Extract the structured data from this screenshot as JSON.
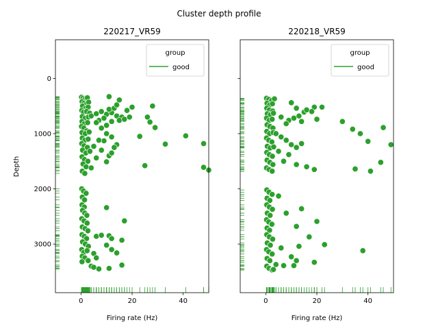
{
  "figure": {
    "suptitle": "Cluster depth profile"
  },
  "chart_data": [
    {
      "type": "scatter",
      "title": "220217_VR59",
      "xlabel": "Firing rate (Hz)",
      "ylabel": "Depth",
      "xlim": [
        -10,
        50
      ],
      "ylim": [
        3880,
        -700
      ],
      "y_inverted": true,
      "xticks": [
        0,
        20,
        40
      ],
      "yticks": [
        0,
        1000,
        2000,
        3000
      ],
      "grid": false,
      "legend": {
        "title": "group",
        "entries": [
          "good"
        ],
        "placement": "upper-right"
      },
      "series": [
        {
          "name": "good",
          "color": "#2ca02c",
          "points": [
            [
              0.2,
              340
            ],
            [
              0.8,
              360
            ],
            [
              1.5,
              380
            ],
            [
              2.5,
              350
            ],
            [
              0.4,
              420
            ],
            [
              1.2,
              450
            ],
            [
              2,
              470
            ],
            [
              3,
              430
            ],
            [
              0.6,
              500
            ],
            [
              1.8,
              540
            ],
            [
              2.8,
              520
            ],
            [
              0.3,
              580
            ],
            [
              1,
              610
            ],
            [
              2.2,
              600
            ],
            [
              3.4,
              630
            ],
            [
              0.5,
              690
            ],
            [
              1.6,
              720
            ],
            [
              2.9,
              700
            ],
            [
              4,
              680
            ],
            [
              0.4,
              780
            ],
            [
              1.3,
              820
            ],
            [
              2.6,
              800
            ],
            [
              0.2,
              870
            ],
            [
              1.1,
              900
            ],
            [
              2.3,
              950
            ],
            [
              0.4,
              980
            ],
            [
              1.7,
              1000
            ],
            [
              3.2,
              970
            ],
            [
              0.5,
              1080
            ],
            [
              1.5,
              1120
            ],
            [
              2.8,
              1100
            ],
            [
              0.3,
              1180
            ],
            [
              1.2,
              1220
            ],
            [
              2.5,
              1250
            ],
            [
              0.6,
              1300
            ],
            [
              1.9,
              1350
            ],
            [
              3.5,
              1320
            ],
            [
              0.4,
              1420
            ],
            [
              1.4,
              1470
            ],
            [
              2.7,
              1500
            ],
            [
              0.8,
              1550
            ],
            [
              2,
              1600
            ],
            [
              0.5,
              1680
            ],
            [
              1.5,
              1720
            ],
            [
              6,
              640
            ],
            [
              8,
              600
            ],
            [
              10,
              650
            ],
            [
              12,
              620
            ],
            [
              14,
              680
            ],
            [
              16,
              700
            ],
            [
              11,
              560
            ],
            [
              13,
              540
            ],
            [
              9,
              720
            ],
            [
              7,
              760
            ],
            [
              18,
              580
            ],
            [
              15,
              760
            ],
            [
              6,
              800
            ],
            [
              10,
              850
            ],
            [
              12,
              780
            ],
            [
              17,
              740
            ],
            [
              20,
              520
            ],
            [
              19,
              700
            ],
            [
              11,
              330
            ],
            [
              15,
              390
            ],
            [
              14,
              480
            ],
            [
              8,
              900
            ],
            [
              10,
              1000
            ],
            [
              12,
              1060
            ],
            [
              9,
              1130
            ],
            [
              14,
              1200
            ],
            [
              13,
              1250
            ],
            [
              8,
              1300
            ],
            [
              11,
              1400
            ],
            [
              10,
              1510
            ],
            [
              12,
              1350
            ],
            [
              5,
              1230
            ],
            [
              7,
              1120
            ],
            [
              6,
              1440
            ],
            [
              4,
              1620
            ],
            [
              25,
              1580
            ],
            [
              26,
              700
            ],
            [
              27,
              790
            ],
            [
              29,
              890
            ],
            [
              28,
              500
            ],
            [
              33,
              1190
            ],
            [
              41,
              1040
            ],
            [
              48,
              1180
            ],
            [
              48,
              1610
            ],
            [
              50,
              1660
            ],
            [
              23,
              1050
            ],
            [
              0.3,
              2000
            ],
            [
              1,
              2040
            ],
            [
              2,
              2080
            ],
            [
              0.5,
              2150
            ],
            [
              1.4,
              2200
            ],
            [
              0.4,
              2290
            ],
            [
              1.3,
              2330
            ],
            [
              0.6,
              2390
            ],
            [
              1.5,
              2440
            ],
            [
              2.3,
              2480
            ],
            [
              0.3,
              2540
            ],
            [
              1.2,
              2580
            ],
            [
              2.4,
              2620
            ],
            [
              0.5,
              2690
            ],
            [
              1.6,
              2720
            ],
            [
              2.7,
              2760
            ],
            [
              0.4,
              2830
            ],
            [
              1.3,
              2860
            ],
            [
              2.2,
              2900
            ],
            [
              0.6,
              2960
            ],
            [
              1.7,
              3000
            ],
            [
              2.9,
              3040
            ],
            [
              0.3,
              3100
            ],
            [
              1.1,
              3150
            ],
            [
              2.4,
              3120
            ],
            [
              0.5,
              3220
            ],
            [
              1.5,
              3250
            ],
            [
              0.4,
              3320
            ],
            [
              2.8,
              3300
            ],
            [
              10,
              2340
            ],
            [
              17,
              2580
            ],
            [
              6,
              2860
            ],
            [
              8,
              2840
            ],
            [
              11,
              2850
            ],
            [
              12,
              2900
            ],
            [
              10,
              3020
            ],
            [
              12,
              3100
            ],
            [
              14,
              3160
            ],
            [
              16,
              2930
            ],
            [
              5,
              3170
            ],
            [
              6,
              3250
            ],
            [
              4,
              3400
            ],
            [
              5,
              3420
            ],
            [
              7,
              3450
            ],
            [
              11,
              3440
            ],
            [
              16,
              3380
            ]
          ]
        }
      ],
      "rug": {
        "x_axis": true,
        "y_axis": true
      }
    },
    {
      "type": "scatter",
      "title": "220218_VR59",
      "xlabel": "Firing rate (Hz)",
      "ylabel": "",
      "xlim": [
        -10,
        50
      ],
      "ylim": [
        3880,
        -700
      ],
      "y_inverted": true,
      "xticks": [
        0,
        20,
        40
      ],
      "yticks": [
        0,
        1000,
        2000,
        3000
      ],
      "grid": false,
      "legend": {
        "title": "group",
        "entries": [
          "good"
        ],
        "placement": "upper-right"
      },
      "series": [
        {
          "name": "good",
          "color": "#2ca02c",
          "points": [
            [
              0.3,
              360
            ],
            [
              1.2,
              380
            ],
            [
              2.3,
              400
            ],
            [
              3.4,
              370
            ],
            [
              0.5,
              450
            ],
            [
              1.5,
              480
            ],
            [
              2.6,
              460
            ],
            [
              0.4,
              540
            ],
            [
              1.4,
              570
            ],
            [
              2.7,
              590
            ],
            [
              0.6,
              640
            ],
            [
              1.8,
              660
            ],
            [
              3,
              630
            ],
            [
              0.3,
              720
            ],
            [
              1.3,
              760
            ],
            [
              2.5,
              740
            ],
            [
              0.5,
              840
            ],
            [
              1.6,
              870
            ],
            [
              2.8,
              900
            ],
            [
              0.4,
              960
            ],
            [
              1.5,
              1000
            ],
            [
              2.9,
              980
            ],
            [
              0.3,
              1080
            ],
            [
              1.2,
              1120
            ],
            [
              2.4,
              1150
            ],
            [
              0.6,
              1230
            ],
            [
              1.7,
              1260
            ],
            [
              3.1,
              1240
            ],
            [
              0.4,
              1340
            ],
            [
              1.4,
              1380
            ],
            [
              2.6,
              1410
            ],
            [
              0.5,
              1480
            ],
            [
              1.6,
              1520
            ],
            [
              2.8,
              1560
            ],
            [
              0.3,
              1620
            ],
            [
              1.3,
              1650
            ],
            [
              2.5,
              1680
            ],
            [
              10,
              440
            ],
            [
              12,
              540
            ],
            [
              15,
              610
            ],
            [
              13,
              680
            ],
            [
              11,
              720
            ],
            [
              9,
              760
            ],
            [
              19,
              520
            ],
            [
              16,
              570
            ],
            [
              14,
              780
            ],
            [
              6,
              700
            ],
            [
              8,
              820
            ],
            [
              18,
              600
            ],
            [
              20,
              740
            ],
            [
              22,
              520
            ],
            [
              4,
              1000
            ],
            [
              6,
              1060
            ],
            [
              8,
              1120
            ],
            [
              10,
              1200
            ],
            [
              12,
              1250
            ],
            [
              14,
              1180
            ],
            [
              5,
              1320
            ],
            [
              9,
              1380
            ],
            [
              7,
              1500
            ],
            [
              12,
              1560
            ],
            [
              16,
              1600
            ],
            [
              19,
              1650
            ],
            [
              30,
              780
            ],
            [
              34,
              920
            ],
            [
              37,
              1000
            ],
            [
              40,
              1140
            ],
            [
              46,
              890
            ],
            [
              49,
              1200
            ],
            [
              35,
              1640
            ],
            [
              41,
              1680
            ],
            [
              45,
              1520
            ],
            [
              0.4,
              2020
            ],
            [
              1.3,
              2060
            ],
            [
              2.5,
              2100
            ],
            [
              0.5,
              2170
            ],
            [
              1.6,
              2210
            ],
            [
              0.4,
              2290
            ],
            [
              1.4,
              2330
            ],
            [
              2.6,
              2370
            ],
            [
              0.6,
              2440
            ],
            [
              1.7,
              2480
            ],
            [
              0.3,
              2560
            ],
            [
              1.2,
              2600
            ],
            [
              2.4,
              2640
            ],
            [
              0.5,
              2710
            ],
            [
              1.5,
              2750
            ],
            [
              0.4,
              2830
            ],
            [
              1.4,
              2870
            ],
            [
              2.7,
              2910
            ],
            [
              0.6,
              2980
            ],
            [
              1.8,
              3020
            ],
            [
              0.3,
              3100
            ],
            [
              1.2,
              3140
            ],
            [
              2.5,
              3180
            ],
            [
              0.5,
              3260
            ],
            [
              1.6,
              3300
            ],
            [
              0.4,
              3400
            ],
            [
              1.3,
              3440
            ],
            [
              2.5,
              3470
            ],
            [
              5,
              2130
            ],
            [
              8,
              2440
            ],
            [
              12,
              2680
            ],
            [
              14,
              2360
            ],
            [
              20,
              2590
            ],
            [
              17,
              2870
            ],
            [
              13,
              3040
            ],
            [
              23,
              3010
            ],
            [
              6,
              3070
            ],
            [
              10,
              3230
            ],
            [
              12,
              3300
            ],
            [
              19,
              3330
            ],
            [
              38,
              3120
            ],
            [
              4,
              3370
            ],
            [
              7,
              3390
            ],
            [
              11,
              3390
            ],
            [
              3,
              3460
            ]
          ]
        }
      ],
      "rug": {
        "x_axis": true,
        "y_axis": true
      }
    }
  ]
}
